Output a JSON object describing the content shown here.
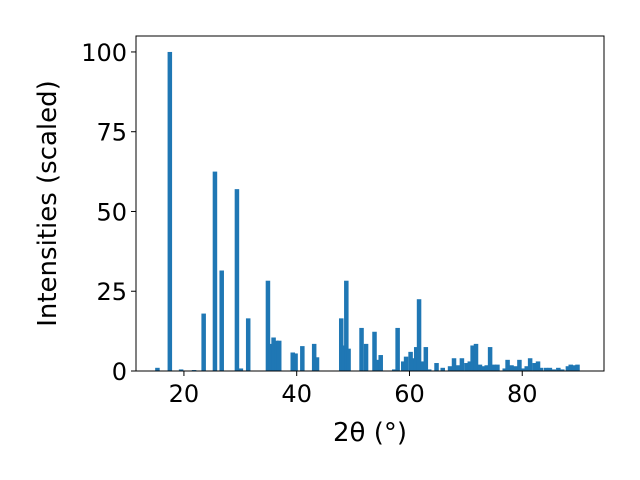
{
  "chart_data": {
    "type": "bar",
    "xlabel": "2θ (°)",
    "ylabel": "Intensities (scaled)",
    "xlim": [
      11.5,
      94.5
    ],
    "ylim": [
      0,
      105
    ],
    "xticks": [
      20,
      40,
      60,
      80
    ],
    "yticks": [
      0,
      25,
      50,
      75,
      100
    ],
    "grid": false,
    "bar_color": "#1f77b4",
    "bar_width": 0.8,
    "x": [
      15.3,
      17.5,
      19.5,
      21.8,
      23.5,
      25.5,
      26.7,
      29.4,
      30.1,
      31.4,
      34.9,
      35.4,
      35.9,
      36.4,
      36.9,
      39.3,
      39.8,
      41.0,
      43.1,
      43.6,
      47.9,
      48.3,
      48.8,
      49.2,
      51.5,
      52.3,
      53.8,
      54.2,
      54.9,
      57.3,
      57.9,
      58.9,
      59.4,
      60.2,
      60.6,
      61.2,
      61.7,
      62.3,
      62.9,
      63.5,
      64.8,
      65.9,
      67.2,
      67.9,
      68.6,
      69.3,
      70.1,
      70.7,
      71.2,
      71.8,
      72.5,
      73.0,
      73.7,
      74.3,
      75.0,
      75.6,
      76.9,
      77.4,
      78.1,
      78.8,
      79.5,
      80.2,
      80.8,
      81.4,
      82.2,
      82.8,
      83.3,
      84.2,
      84.9,
      85.6,
      86.4,
      87.1,
      88.1,
      88.6,
      89.2,
      89.8
    ],
    "values": [
      1,
      100,
      0.5,
      0.3,
      18,
      62.5,
      31.5,
      57,
      0.8,
      16.5,
      28.3,
      8.5,
      10.5,
      9.5,
      9.5,
      5.8,
      5.5,
      7.8,
      8.5,
      4.3,
      16.5,
      8,
      28.3,
      7,
      13.5,
      8.5,
      12.3,
      3.5,
      5,
      0.5,
      13.5,
      3,
      4.5,
      6,
      4,
      7.5,
      22.5,
      3,
      7.5,
      0.5,
      2.5,
      1,
      1.5,
      4,
      1.8,
      4,
      2.5,
      3,
      8,
      8.5,
      2,
      1.5,
      1.8,
      7.5,
      2,
      2,
      0.8,
      3.5,
      1.8,
      1.5,
      3.5,
      0.8,
      1.5,
      4,
      2.5,
      3,
      1,
      1,
      1,
      0.5,
      1,
      0.5,
      1.5,
      2,
      1.8,
      2
    ]
  }
}
